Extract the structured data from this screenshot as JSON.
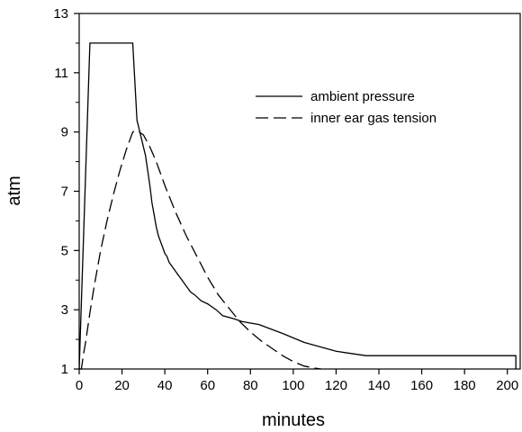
{
  "chart_data": {
    "type": "line",
    "title": "",
    "xlabel": "minutes",
    "ylabel": "atm",
    "xlim": [
      0,
      206
    ],
    "ylim": [
      1,
      13
    ],
    "x_ticks": [
      0,
      20,
      40,
      60,
      80,
      100,
      120,
      140,
      160,
      180,
      200
    ],
    "y_ticks": [
      1,
      3,
      5,
      7,
      9,
      11,
      13
    ],
    "y_minor_ticks": [
      2,
      4,
      6,
      8,
      10,
      12
    ],
    "grid": false,
    "legend_position": "top-right",
    "series": [
      {
        "name": "ambient pressure",
        "style": "solid",
        "color": "#000000",
        "x": [
          0,
          5,
          25,
          27,
          27,
          29,
          29,
          31,
          31,
          33,
          33,
          34,
          34,
          35,
          35,
          36,
          36,
          37,
          37,
          38,
          38,
          39,
          39,
          40,
          40,
          41,
          41,
          42,
          42,
          44,
          44,
          46,
          46,
          48,
          48,
          50,
          50,
          52,
          52,
          54,
          54,
          57,
          57,
          60,
          60,
          64,
          64,
          67,
          67,
          72,
          72,
          76,
          76,
          84,
          84,
          95,
          95,
          105,
          105,
          120,
          120,
          134,
          134,
          204,
          204
        ],
        "y": [
          1,
          12,
          12,
          9.4,
          9.4,
          8.8,
          8.8,
          8.2,
          8.2,
          7.2,
          7.2,
          6.6,
          6.6,
          6.2,
          6.2,
          5.8,
          5.8,
          5.5,
          5.5,
          5.3,
          5.3,
          5.1,
          5.1,
          4.9,
          4.9,
          4.8,
          4.8,
          4.6,
          4.6,
          4.4,
          4.4,
          4.2,
          4.2,
          4.0,
          4.0,
          3.8,
          3.8,
          3.6,
          3.6,
          3.5,
          3.5,
          3.3,
          3.3,
          3.2,
          3.2,
          3.0,
          3.0,
          2.8,
          2.8,
          2.7,
          2.7,
          2.6,
          2.6,
          2.5,
          2.5,
          2.2,
          2.2,
          1.9,
          1.9,
          1.6,
          1.6,
          1.45,
          1.45,
          1.45,
          1
        ]
      },
      {
        "name": "inner ear gas tension",
        "style": "dashed",
        "color": "#000000",
        "x": [
          0,
          1,
          2,
          3,
          5,
          7,
          10,
          13,
          16,
          19,
          22,
          25,
          27,
          30,
          33,
          36,
          40,
          45,
          50,
          55,
          60,
          65,
          70,
          75,
          80,
          85,
          90,
          95,
          100,
          105,
          110,
          113
        ],
        "y": [
          1,
          1.0,
          1.5,
          1.9,
          2.9,
          3.8,
          5.0,
          6.0,
          6.9,
          7.7,
          8.4,
          9.0,
          9.05,
          8.9,
          8.5,
          8.0,
          7.2,
          6.3,
          5.5,
          4.8,
          4.1,
          3.5,
          3.05,
          2.6,
          2.25,
          1.95,
          1.7,
          1.45,
          1.25,
          1.1,
          1.03,
          1
        ]
      }
    ]
  }
}
